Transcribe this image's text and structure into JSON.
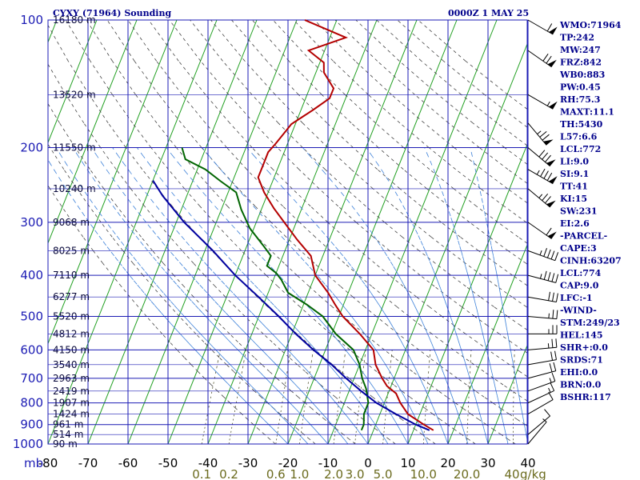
{
  "header": {
    "station": "CYXY (71964) Sounding",
    "time": "0000Z  1 MAY 25"
  },
  "chart_data": {
    "type": "line",
    "title": "CYXY (71964) Sounding",
    "xlabel": "",
    "ylabel": "mb",
    "xlim": [
      -80,
      0
    ],
    "pressure_ticks": [
      100,
      200,
      300,
      400,
      500,
      600,
      700,
      800,
      900,
      1000
    ],
    "temperature_ticks": [
      -80,
      -70,
      -60,
      -50,
      -40,
      -30,
      -20,
      -10,
      0,
      10,
      20,
      30,
      40
    ],
    "temperature_tick_labels": [
      "-80",
      "-70",
      "-60",
      "-50",
      "-40",
      "-30",
      "-20",
      "-10",
      "0",
      "10",
      "20",
      "30",
      "40"
    ],
    "mixing_ratio_labels": [
      {
        "value": 0.1,
        "label": "0.1"
      },
      {
        "value": 0.2,
        "label": "0.2"
      },
      {
        "value": 0.6,
        "label": "0.6"
      },
      {
        "value": 1.0,
        "label": "1.0"
      },
      {
        "value": 2.0,
        "label": "2.0"
      },
      {
        "value": 3.0,
        "label": "3.0"
      },
      {
        "value": 5.0,
        "label": "5.0"
      },
      {
        "value": 10.0,
        "label": "10.0"
      },
      {
        "value": 20.0,
        "label": "20.0"
      },
      {
        "value": 40.0,
        "label": "40"
      }
    ],
    "mixing_ratio_unit": "g/kg",
    "height_labels": [
      {
        "p": 100,
        "label": "16180 m"
      },
      {
        "p": 150,
        "label": "13520 m"
      },
      {
        "p": 200,
        "label": "11550 m"
      },
      {
        "p": 250,
        "label": "10240 m"
      },
      {
        "p": 300,
        "label": "9068 m"
      },
      {
        "p": 350,
        "label": "8025 m"
      },
      {
        "p": 400,
        "label": "7110 m"
      },
      {
        "p": 450,
        "label": "6277 m"
      },
      {
        "p": 500,
        "label": "5520 m"
      },
      {
        "p": 550,
        "label": "4812 m"
      },
      {
        "p": 600,
        "label": "4150 m"
      },
      {
        "p": 650,
        "label": "3540 m"
      },
      {
        "p": 700,
        "label": "2963 m"
      },
      {
        "p": 750,
        "label": "2419 m"
      },
      {
        "p": 800,
        "label": "1907 m"
      },
      {
        "p": 850,
        "label": "1424 m"
      },
      {
        "p": 900,
        "label": "961 m"
      },
      {
        "p": 950,
        "label": "514 m"
      },
      {
        "p": 1000,
        "label": "90 m"
      }
    ],
    "series": [
      {
        "color": "#b40000",
        "points": [
          [
            100,
            -58
          ],
          [
            110,
            -46
          ],
          [
            118,
            -54
          ],
          [
            126,
            -49
          ],
          [
            133,
            -48
          ],
          [
            145,
            -44
          ],
          [
            153,
            -44
          ],
          [
            163,
            -47
          ],
          [
            176,
            -51
          ],
          [
            186,
            -52
          ],
          [
            196,
            -53
          ],
          [
            205,
            -54
          ],
          [
            215,
            -54
          ],
          [
            235,
            -54
          ],
          [
            255,
            -51
          ],
          [
            278,
            -47
          ],
          [
            300,
            -43
          ],
          [
            330,
            -38
          ],
          [
            360,
            -33
          ],
          [
            400,
            -30
          ],
          [
            440,
            -25
          ],
          [
            470,
            -22
          ],
          [
            500,
            -19
          ],
          [
            550,
            -13
          ],
          [
            600,
            -8
          ],
          [
            650,
            -6
          ],
          [
            700,
            -3
          ],
          [
            730,
            -1
          ],
          [
            760,
            2
          ],
          [
            800,
            4
          ],
          [
            850,
            7
          ],
          [
            900,
            12
          ],
          [
            928,
            15
          ]
        ]
      },
      {
        "color": "#006400",
        "points": [
          [
            200,
            -76
          ],
          [
            213,
            -74
          ],
          [
            225,
            -68
          ],
          [
            240,
            -63
          ],
          [
            255,
            -58
          ],
          [
            280,
            -55
          ],
          [
            310,
            -51
          ],
          [
            340,
            -46
          ],
          [
            360,
            -43
          ],
          [
            380,
            -43
          ],
          [
            395,
            -40
          ],
          [
            410,
            -38
          ],
          [
            440,
            -35
          ],
          [
            470,
            -29
          ],
          [
            500,
            -24
          ],
          [
            550,
            -19
          ],
          [
            600,
            -13
          ],
          [
            650,
            -10
          ],
          [
            700,
            -8
          ],
          [
            740,
            -6
          ],
          [
            800,
            -4
          ],
          [
            850,
            -4
          ],
          [
            900,
            -3
          ],
          [
            928,
            -3
          ]
        ]
      },
      {
        "color": "#0000a0",
        "points": [
          [
            239,
            -80
          ],
          [
            260,
            -76
          ],
          [
            300,
            -68
          ],
          [
            350,
            -58
          ],
          [
            400,
            -50
          ],
          [
            450,
            -42
          ],
          [
            500,
            -35
          ],
          [
            550,
            -29
          ],
          [
            600,
            -23
          ],
          [
            650,
            -17
          ],
          [
            700,
            -12
          ],
          [
            750,
            -7
          ],
          [
            800,
            -2
          ],
          [
            850,
            4
          ],
          [
            900,
            10
          ],
          [
            928,
            14
          ]
        ]
      }
    ],
    "wind_levels": [
      {
        "p": 100,
        "dir": 300,
        "speed": 60
      },
      {
        "p": 118,
        "dir": 305,
        "speed": 70
      },
      {
        "p": 150,
        "dir": 300,
        "speed": 55
      },
      {
        "p": 175,
        "dir": 320,
        "speed": 75
      },
      {
        "p": 200,
        "dir": 310,
        "speed": 80
      },
      {
        "p": 225,
        "dir": 300,
        "speed": 85
      },
      {
        "p": 250,
        "dir": 310,
        "speed": 75
      },
      {
        "p": 300,
        "dir": 305,
        "speed": 60
      },
      {
        "p": 350,
        "dir": 290,
        "speed": 45
      },
      {
        "p": 400,
        "dir": 285,
        "speed": 45
      },
      {
        "p": 450,
        "dir": 280,
        "speed": 30
      },
      {
        "p": 500,
        "dir": 275,
        "speed": 25
      },
      {
        "p": 550,
        "dir": 270,
        "speed": 25
      },
      {
        "p": 600,
        "dir": 265,
        "speed": 25
      },
      {
        "p": 650,
        "dir": 260,
        "speed": 20
      },
      {
        "p": 700,
        "dir": 255,
        "speed": 20
      },
      {
        "p": 750,
        "dir": 250,
        "speed": 15
      },
      {
        "p": 800,
        "dir": 245,
        "speed": 15
      },
      {
        "p": 850,
        "dir": 240,
        "speed": 10
      },
      {
        "p": 950,
        "dir": 230,
        "speed": 10
      },
      {
        "p": 1000,
        "dir": 220,
        "speed": 5
      }
    ]
  },
  "indices": [
    "WMO:71964",
    "TP:242",
    "MW:247",
    "FRZ:842",
    "WB0:883",
    "PW:0.45",
    "RH:75.3",
    "MAXT:11.1",
    "TH:5430",
    "L57:6.6",
    "LCL:772",
    "LI:9.0",
    "SI:9.1",
    "TT:41",
    "KI:15",
    "SW:231",
    "EI:2.6",
    "-PARCEL-",
    "CAPE:3",
    "CINH:63207",
    "LCL:774",
    "CAP:9.0",
    "LFC:-1",
    "-WIND-",
    "STM:249/23",
    "HEL:145",
    "SHR+:0.0",
    "SRDS:71",
    "EHI:0.0",
    "BRN:0.0",
    "BSHR:117"
  ]
}
